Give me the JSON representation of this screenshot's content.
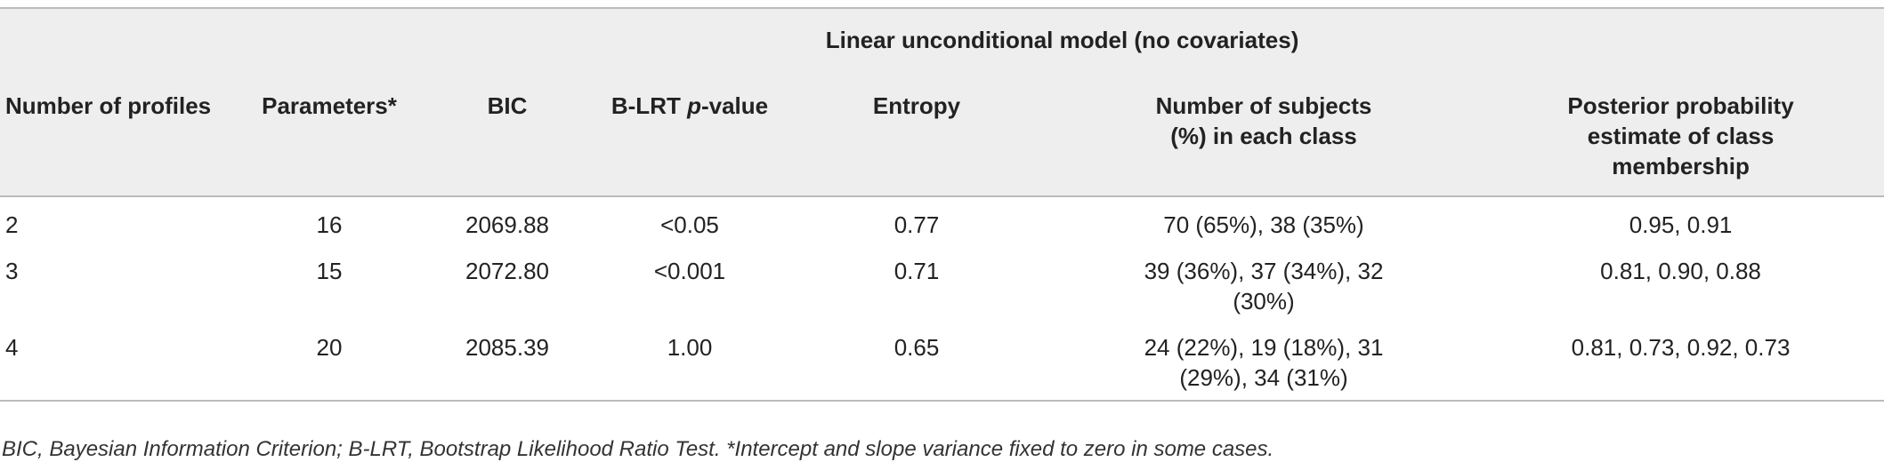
{
  "table": {
    "band_title": "Linear unconditional model (no covariates)",
    "headers": [
      "Number of profiles",
      "Parameters*",
      "BIC",
      "B-LRT p-value",
      "Entropy",
      "Number of subjects (%) in each class",
      "Posterior probability estimate of class membership"
    ],
    "header_lines": {
      "blrt_prefix": "B-LRT ",
      "blrt_italic": "p",
      "blrt_suffix": "-value",
      "subjects_l1": "Number of subjects",
      "subjects_l2": "(%) in each class",
      "posterior_l1": "Posterior probability",
      "posterior_l2": "estimate of class",
      "posterior_l3": "membership"
    },
    "rows": [
      {
        "profiles": "2",
        "parameters": "16",
        "bic": "2069.88",
        "blrt": "<0.05",
        "entropy": "0.77",
        "subjects_l1": "70 (65%), 38 (35%)",
        "subjects_l2": "",
        "posterior": "0.95, 0.91"
      },
      {
        "profiles": "3",
        "parameters": "15",
        "bic": "2072.80",
        "blrt": "<0.001",
        "entropy": "0.71",
        "subjects_l1": "39 (36%), 37 (34%), 32",
        "subjects_l2": "(30%)",
        "posterior": "0.81, 0.90, 0.88"
      },
      {
        "profiles": "4",
        "parameters": "20",
        "bic": "2085.39",
        "blrt": "1.00",
        "entropy": "0.65",
        "subjects_l1": "24 (22%), 19 (18%), 31",
        "subjects_l2": "(29%), 34 (31%)",
        "posterior": "0.81, 0.73, 0.92, 0.73"
      }
    ],
    "footnote": "BIC, Bayesian Information Criterion; B-LRT, Bootstrap Likelihood Ratio Test. *Intercept and slope variance fixed to zero in some cases."
  },
  "colors": {
    "header_bg": "#eeeeee",
    "rule": "#bbbbbb",
    "text": "#222222"
  }
}
